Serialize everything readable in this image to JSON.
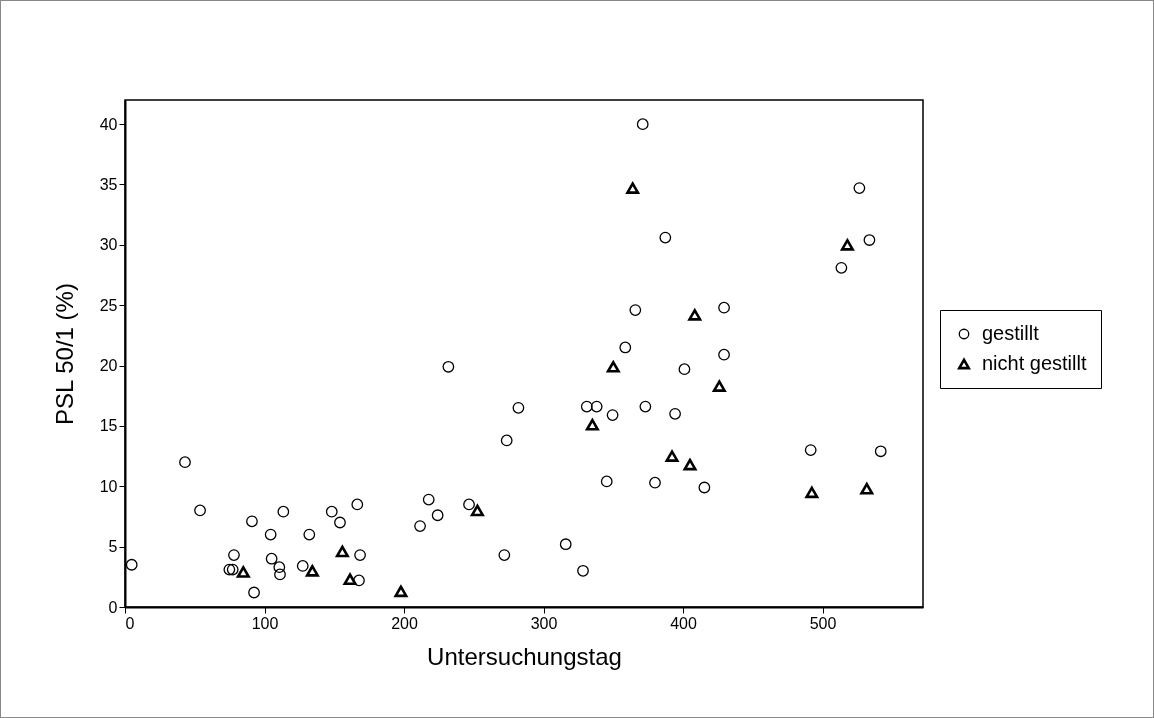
{
  "chart_data": {
    "type": "scatter",
    "xlabel": "Untersuchungstag",
    "ylabel": "PSL 50/1 (%)",
    "xlim": [
      0,
      572
    ],
    "ylim": [
      0,
      42
    ],
    "xticks": [
      0,
      100,
      200,
      300,
      400,
      500
    ],
    "yticks": [
      0,
      5,
      10,
      15,
      20,
      25,
      30,
      35,
      40
    ],
    "grid": false,
    "legend": "right",
    "series": [
      {
        "name": "gestillt",
        "color": "#000000",
        "marker": "circle",
        "x": [
          4.8,
          43,
          53.8,
          74.8,
          77.2,
          78.1,
          91,
          92.5,
          104.4,
          105.1,
          110.6,
          111.1,
          113.5,
          127.4,
          132.1,
          148.2,
          154.1,
          166.5,
          168.5,
          167.7,
          211.5,
          217.7,
          224.1,
          231.8,
          246.6,
          271.9,
          273.6,
          282,
          371.1,
          526.4,
          387.3,
          533.6,
          513.5,
          365.8,
          429.4,
          358.6,
          429.4,
          401,
          331,
          338.1,
          349.5,
          373,
          394.3,
          491.5,
          541.7,
          345.3,
          379.9,
          415.3,
          315.9,
          328.3
        ],
        "values": [
          3.5,
          12.0,
          8.0,
          3.1,
          3.1,
          4.3,
          7.1,
          1.2,
          6.0,
          4.0,
          3.3,
          2.7,
          7.9,
          3.4,
          6.0,
          7.9,
          7.0,
          8.5,
          4.3,
          2.2,
          6.7,
          8.9,
          7.6,
          19.9,
          8.5,
          4.3,
          13.8,
          16.5,
          40.0,
          34.7,
          30.6,
          30.4,
          28.1,
          24.6,
          24.8,
          21.5,
          20.9,
          19.7,
          16.6,
          16.6,
          15.9,
          16.6,
          16.0,
          13.0,
          12.9,
          10.4,
          10.3,
          9.9,
          5.2,
          3.0
        ]
      },
      {
        "name": "nicht gestillt",
        "color": "#000000",
        "marker": "triangle",
        "x": [
          84.8,
          134.3,
          155.8,
          161.3,
          197.8,
          252.6,
          363.9,
          517.8,
          408.4,
          350,
          426,
          335,
          392.1,
          405,
          492.3,
          531.7
        ],
        "values": [
          2.9,
          3.0,
          4.6,
          2.3,
          1.3,
          8.0,
          34.7,
          30.0,
          24.2,
          19.9,
          18.3,
          15.1,
          12.5,
          11.8,
          9.5,
          9.8
        ]
      }
    ]
  }
}
